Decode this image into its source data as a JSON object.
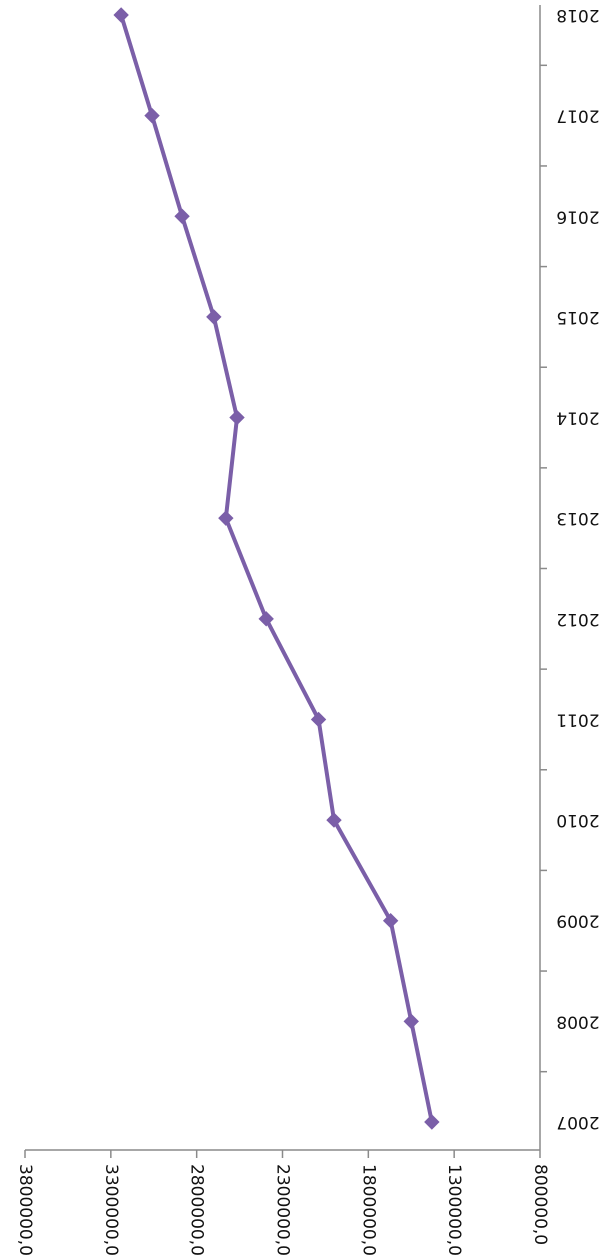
{
  "chart_data": {
    "type": "line",
    "title": "",
    "xlabel": "",
    "ylabel": "",
    "categories": [
      "2007",
      "2008",
      "2009",
      "2010",
      "2011",
      "2012",
      "2013",
      "2014",
      "2015",
      "2016",
      "2017",
      "2018"
    ],
    "series": [
      {
        "name": "",
        "color": "#7B5FA8",
        "marker": "diamond",
        "values": [
          1430000,
          1550000,
          1670000,
          2000000,
          2090000,
          2395000,
          2630000,
          2565000,
          2700000,
          2885000,
          3060000,
          3240000
        ]
      }
    ],
    "ylim": [
      800000,
      3800000
    ],
    "y_ticks": [
      "800000,0",
      "1300000,0",
      "1800000,0",
      "2300000,0",
      "2800000,0",
      "3300000,0",
      "3800000,0"
    ],
    "y_tick_values": [
      800000,
      1300000,
      1800000,
      2300000,
      2800000,
      3300000,
      3800000
    ],
    "grid": false,
    "legend": "none",
    "orientation": "rotated-180"
  }
}
